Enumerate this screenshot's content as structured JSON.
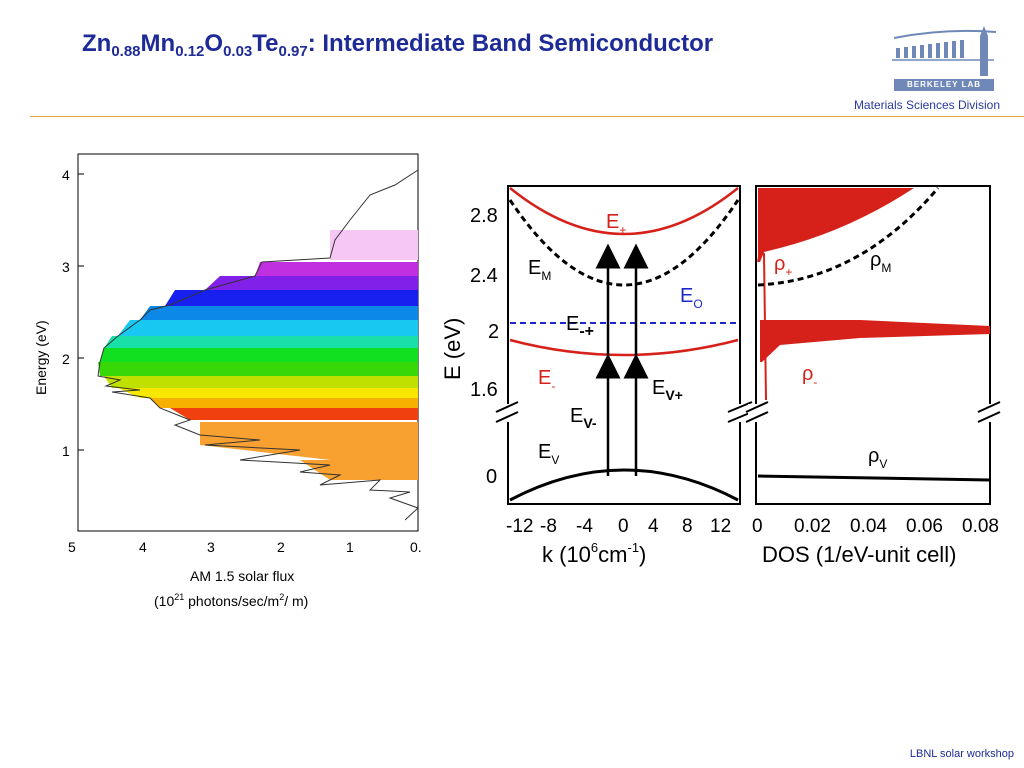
{
  "title": {
    "main": "Zn",
    "sub1": "0.88",
    "el2": "Mn",
    "sub2": "0.12",
    "el3": "O",
    "sub3": "0.03",
    "el4": "Te",
    "sub4": "0.97",
    "rest": ": Intermediate Band Semiconductor"
  },
  "logo": {
    "text": "BERKELEY LAB"
  },
  "division": "Materials Sciences Division",
  "footer": "LBNL solar workshop",
  "solar_panel": {
    "ylabel": "Energy (eV)",
    "yticks": [
      "1",
      "2",
      "3",
      "4"
    ],
    "xticks": [
      "5",
      "4",
      "3",
      "2",
      "1",
      "0."
    ],
    "xlabel_line1": "AM 1.5 solar flux",
    "xlabel_line2_a": "(10",
    "xlabel_line2_sup": "21",
    "xlabel_line2_b": " photons/sec/m",
    "xlabel_line2_sup2": "2",
    "xlabel_line2_c": "/  m)"
  },
  "band_panel": {
    "ylabel": "E (eV)",
    "yticks": [
      "0",
      "1.6",
      "2",
      "2.4",
      "2.8"
    ],
    "xticks": [
      "-12",
      "-8",
      "-4",
      "0",
      "4",
      "8",
      "12"
    ],
    "xlabel": "k (10",
    "xlabel_sup": "6",
    "xlabel_b": "cm",
    "xlabel_sup2": "-1",
    "xlabel_c": ")",
    "labels": {
      "e_plus": "E",
      "e_plus_sub": "+",
      "e_m": "E",
      "e_m_sub": "M",
      "e_o": "E",
      "e_o_sub": "O",
      "e_mp": "E",
      "e_mp_sub": "-+",
      "e_minus": "E",
      "e_minus_sub": "-",
      "e_vplus": "E",
      "e_vplus_sub": "V+",
      "e_vminus": "E",
      "e_vminus_sub": "V-",
      "e_v": "E",
      "e_v_sub": "V"
    }
  },
  "dos_panel": {
    "xticks": [
      "0",
      "0.02",
      "0.04",
      "0.06",
      "0.08"
    ],
    "xlabel": "DOS (1/eV-unit cell)",
    "labels": {
      "rho_plus": "ρ",
      "rho_plus_sub": "+",
      "rho_m": "ρ",
      "rho_m_sub": "M",
      "rho_minus": "ρ",
      "rho_minus_sub": "-",
      "rho_v": "ρ",
      "rho_v_sub": "V"
    }
  },
  "colors": {
    "title": "#1e2b96",
    "red_band": "#d6201a",
    "blue_band": "#1c2bc8",
    "rule": "#e6a23c"
  }
}
